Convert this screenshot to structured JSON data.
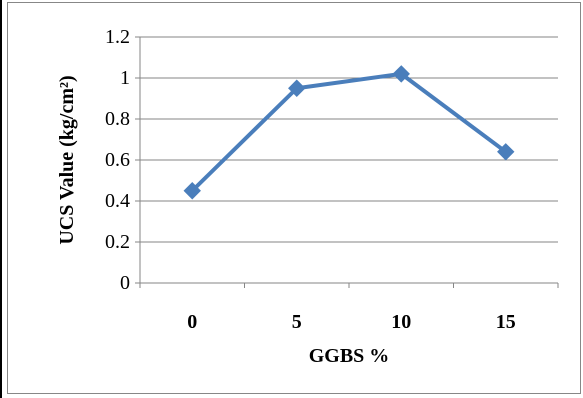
{
  "chart_data": {
    "type": "line",
    "title": "",
    "xlabel": "GGBS %",
    "ylabel": "UCS Value (kg/cm²)",
    "categories": [
      "0",
      "5",
      "10",
      "15"
    ],
    "series": [
      {
        "values": [
          0.45,
          0.95,
          1.02,
          0.64
        ],
        "color": "#4a7ebb"
      }
    ],
    "ylim": [
      0,
      1.2
    ],
    "yticks": [
      0,
      0.2,
      0.4,
      0.6,
      0.8,
      1,
      1.2
    ],
    "ytick_labels": [
      "0",
      "0.2",
      "0.4",
      "0.6",
      "0.8",
      "1",
      "1.2"
    ],
    "grid": true,
    "legend": "none",
    "marker": "diamond",
    "colors": {
      "series": "#4a7ebb",
      "grid": "#868686",
      "axis": "#868686",
      "text": "#000000"
    }
  }
}
